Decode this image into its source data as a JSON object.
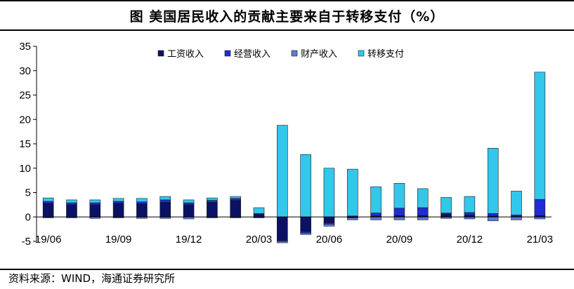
{
  "header": {
    "title": "图  美国居民收入的贡献主要来自于转移支付（%）"
  },
  "footer": {
    "source": "资料来源：WIND，海通证券研究所"
  },
  "chart_data": {
    "type": "bar",
    "stacked": true,
    "title": "图  美国居民收入的贡献主要来自于转移支付（%）",
    "xlabel": "",
    "ylabel": "",
    "ylim": [
      -5,
      35
    ],
    "yticks": [
      -5,
      0,
      5,
      10,
      15,
      20,
      25,
      30,
      35
    ],
    "grid": false,
    "legend_position": "top",
    "categories": [
      "19/06",
      "19/07",
      "19/08",
      "19/09",
      "19/10",
      "19/11",
      "19/12",
      "20/01",
      "20/02",
      "20/03",
      "20/04",
      "20/05",
      "20/06",
      "20/07",
      "20/08",
      "20/09",
      "20/10",
      "20/11",
      "20/12",
      "21/01",
      "21/02",
      "21/03"
    ],
    "tick_labels": [
      {
        "index": 0,
        "label": "19/06"
      },
      {
        "index": 3,
        "label": "19/09"
      },
      {
        "index": 6,
        "label": "19/12"
      },
      {
        "index": 9,
        "label": "20/03"
      },
      {
        "index": 12,
        "label": "20/06"
      },
      {
        "index": 15,
        "label": "20/09"
      },
      {
        "index": 18,
        "label": "20/12"
      },
      {
        "index": 21,
        "label": "21/03"
      }
    ],
    "series": [
      {
        "name": "工资收入",
        "color": "#0b1164",
        "values": [
          2.8,
          2.5,
          2.5,
          2.8,
          2.7,
          3.0,
          2.5,
          3.0,
          3.4,
          0.5,
          -4.8,
          -3.0,
          -1.2,
          0.2,
          0.2,
          0.3,
          0.3,
          0.6,
          0.4,
          0.2,
          0.2,
          0.3
        ]
      },
      {
        "name": "经营收入",
        "color": "#1f2dd6",
        "values": [
          0.4,
          0.4,
          0.4,
          0.4,
          0.4,
          0.5,
          0.4,
          0.4,
          0.4,
          0.2,
          -0.2,
          -0.3,
          -0.3,
          -0.2,
          0.6,
          1.5,
          1.6,
          0.2,
          0.5,
          0.5,
          0.2,
          3.3
        ]
      },
      {
        "name": "财产收入",
        "color": "#5b7ad8",
        "values": [
          -0.2,
          -0.2,
          -0.3,
          -0.2,
          -0.3,
          -0.3,
          -0.4,
          -0.2,
          -0.2,
          -0.2,
          -0.3,
          -0.3,
          -0.4,
          -0.4,
          -0.6,
          -0.6,
          -0.6,
          -0.3,
          -0.4,
          -0.8,
          -0.6,
          -0.4
        ]
      },
      {
        "name": "转移支付",
        "color": "#33c7eb",
        "values": [
          0.7,
          0.6,
          0.6,
          0.6,
          0.7,
          0.7,
          0.6,
          0.5,
          0.4,
          1.2,
          18.8,
          12.8,
          10.0,
          9.6,
          5.4,
          5.1,
          3.9,
          3.2,
          3.3,
          13.4,
          4.9,
          26.1
        ]
      }
    ]
  }
}
